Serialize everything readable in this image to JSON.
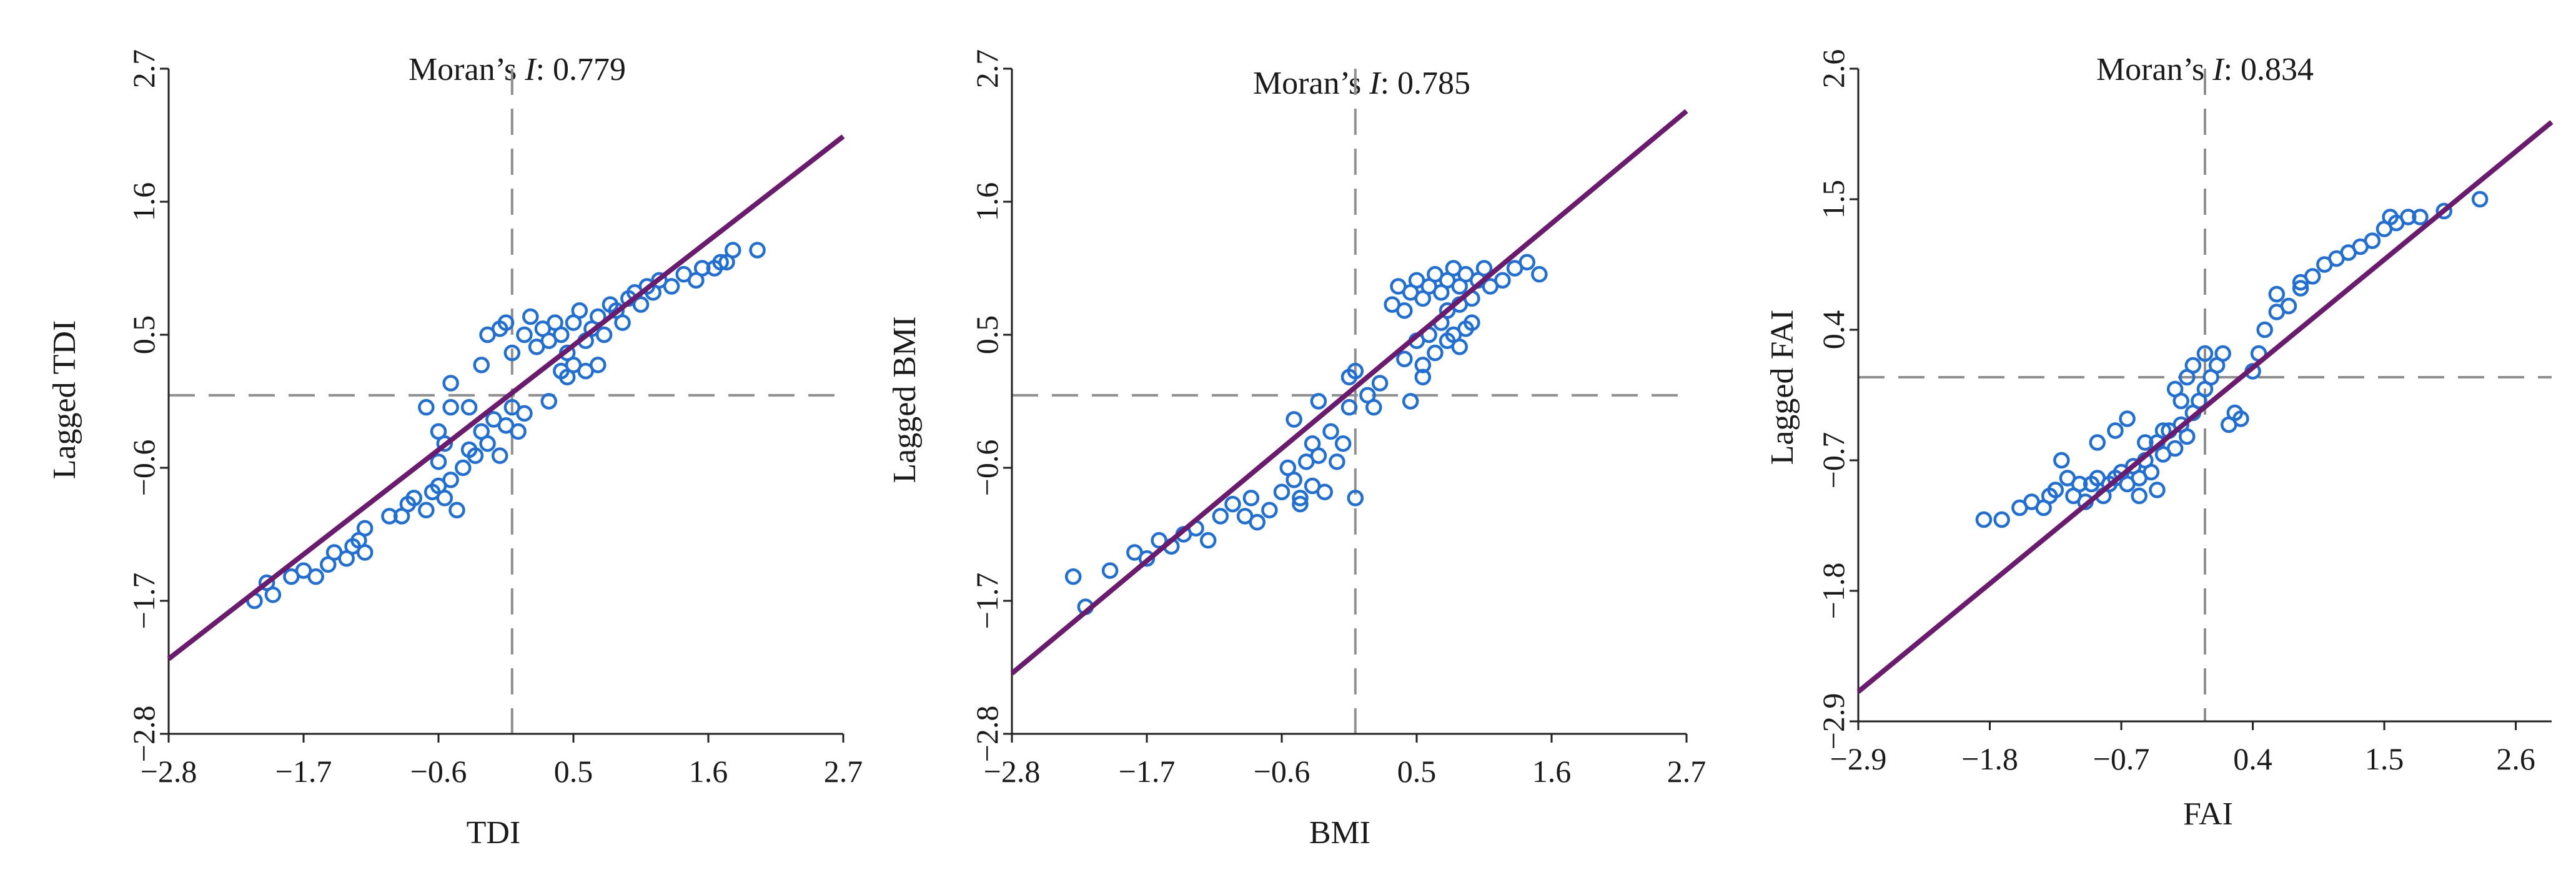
{
  "colors": {
    "point": "#1f6fd6",
    "fit_line": "#6a1b6e",
    "mean_line": "#8f8f8f",
    "axis": "#222222"
  },
  "chart_data": [
    {
      "type": "scatter",
      "title": "Moran's I: 0.779",
      "title_prefix": "Moran’s ",
      "title_italic": "I",
      "title_value": ": 0.779",
      "xlabel": "TDI",
      "ylabel": "Lagged TDI",
      "xlim": [
        -2.8,
        2.7
      ],
      "ylim": [
        -2.8,
        2.7
      ],
      "xticks": [
        -2.8,
        -1.7,
        -0.6,
        0.5,
        1.6,
        2.7
      ],
      "yticks": [
        -2.8,
        -1.7,
        -0.6,
        0.5,
        1.6,
        2.7
      ],
      "xtick_labels": [
        "−2.8",
        "−1.7",
        "−0.6",
        "0.5",
        "1.6",
        "2.7"
      ],
      "ytick_labels": [
        "−2.8",
        "−1.7",
        "−0.6",
        "0.5",
        "1.6",
        "2.7"
      ],
      "mean_x": 0.0,
      "mean_y": 0.0,
      "fit_line": [
        [
          -2.8,
          -2.18
        ],
        [
          2.7,
          2.14
        ]
      ],
      "points": [
        [
          -2.1,
          -1.7
        ],
        [
          -2.0,
          -1.55
        ],
        [
          -1.95,
          -1.65
        ],
        [
          -1.8,
          -1.5
        ],
        [
          -1.7,
          -1.45
        ],
        [
          -1.6,
          -1.5
        ],
        [
          -1.5,
          -1.4
        ],
        [
          -1.45,
          -1.3
        ],
        [
          -1.35,
          -1.35
        ],
        [
          -1.3,
          -1.25
        ],
        [
          -1.25,
          -1.2
        ],
        [
          -1.2,
          -1.1
        ],
        [
          -1.2,
          -1.3
        ],
        [
          -1.0,
          -1.0
        ],
        [
          -0.9,
          -1.0
        ],
        [
          -0.85,
          -0.9
        ],
        [
          -0.8,
          -0.85
        ],
        [
          -0.7,
          -0.95
        ],
        [
          -0.65,
          -0.8
        ],
        [
          -0.6,
          -0.75
        ],
        [
          -0.55,
          -0.85
        ],
        [
          -0.5,
          -0.7
        ],
        [
          -0.45,
          -0.95
        ],
        [
          -0.4,
          -0.6
        ],
        [
          -0.35,
          -0.45
        ],
        [
          -0.3,
          -0.5
        ],
        [
          -0.25,
          -0.3
        ],
        [
          -0.2,
          -0.4
        ],
        [
          -0.15,
          -0.2
        ],
        [
          -0.1,
          -0.5
        ],
        [
          -0.05,
          -0.25
        ],
        [
          0.0,
          -0.1
        ],
        [
          0.05,
          -0.3
        ],
        [
          0.1,
          -0.15
        ],
        [
          -0.7,
          -0.1
        ],
        [
          -0.5,
          -0.1
        ],
        [
          -0.6,
          -0.3
        ],
        [
          -0.55,
          -0.4
        ],
        [
          -0.35,
          -0.1
        ],
        [
          -0.5,
          0.1
        ],
        [
          -0.6,
          -0.55
        ],
        [
          0.3,
          -0.05
        ],
        [
          0.2,
          0.4
        ],
        [
          0.25,
          0.55
        ],
        [
          0.3,
          0.45
        ],
        [
          0.35,
          0.6
        ],
        [
          0.4,
          0.5
        ],
        [
          0.45,
          0.35
        ],
        [
          0.5,
          0.6
        ],
        [
          0.55,
          0.7
        ],
        [
          0.6,
          0.45
        ],
        [
          0.65,
          0.55
        ],
        [
          0.7,
          0.65
        ],
        [
          0.75,
          0.5
        ],
        [
          0.8,
          0.75
        ],
        [
          0.85,
          0.7
        ],
        [
          0.9,
          0.6
        ],
        [
          0.95,
          0.8
        ],
        [
          1.0,
          0.85
        ],
        [
          1.05,
          0.75
        ],
        [
          1.1,
          0.9
        ],
        [
          1.15,
          0.85
        ],
        [
          1.2,
          0.95
        ],
        [
          1.3,
          0.9
        ],
        [
          1.4,
          1.0
        ],
        [
          1.5,
          0.95
        ],
        [
          1.55,
          1.05
        ],
        [
          1.65,
          1.05
        ],
        [
          1.7,
          1.1
        ],
        [
          1.75,
          1.1
        ],
        [
          1.8,
          1.2
        ],
        [
          2.0,
          1.2
        ],
        [
          0.4,
          0.2
        ],
        [
          0.5,
          0.25
        ],
        [
          0.6,
          0.2
        ],
        [
          0.7,
          0.25
        ],
        [
          0.45,
          0.15
        ],
        [
          -0.25,
          0.25
        ],
        [
          -0.2,
          0.5
        ],
        [
          -0.1,
          0.55
        ],
        [
          0.15,
          0.65
        ],
        [
          0.0,
          0.35
        ],
        [
          -0.05,
          0.6
        ],
        [
          0.1,
          0.5
        ]
      ]
    },
    {
      "type": "scatter",
      "title": "Moran's I: 0.785",
      "title_prefix": "Moran’s ",
      "title_italic": "I",
      "title_value": ": 0.785",
      "xlabel": "BMI",
      "ylabel": "Lagged BMI",
      "xlim": [
        -2.8,
        2.7
      ],
      "ylim": [
        -2.8,
        2.7
      ],
      "xticks": [
        -2.8,
        -1.7,
        -0.6,
        0.5,
        1.6,
        2.7
      ],
      "yticks": [
        -2.8,
        -1.7,
        -0.6,
        0.5,
        1.6,
        2.7
      ],
      "xtick_labels": [
        "−2.8",
        "−1.7",
        "−0.6",
        "0.5",
        "1.6",
        "2.7"
      ],
      "ytick_labels": [
        "−2.8",
        "−1.7",
        "−0.6",
        "0.5",
        "1.6",
        "2.7"
      ],
      "mean_x": 0.0,
      "mean_y": 0.0,
      "fit_line": [
        [
          -2.8,
          -2.3
        ],
        [
          2.7,
          2.35
        ]
      ],
      "points": [
        [
          -2.3,
          -1.5
        ],
        [
          -2.2,
          -1.75
        ],
        [
          -2.0,
          -1.45
        ],
        [
          -1.8,
          -1.3
        ],
        [
          -1.7,
          -1.35
        ],
        [
          -1.6,
          -1.2
        ],
        [
          -1.5,
          -1.25
        ],
        [
          -1.4,
          -1.15
        ],
        [
          -1.3,
          -1.1
        ],
        [
          -1.2,
          -1.2
        ],
        [
          -1.1,
          -1.0
        ],
        [
          -1.0,
          -0.9
        ],
        [
          -0.9,
          -1.0
        ],
        [
          -0.85,
          -0.85
        ],
        [
          -0.8,
          -1.05
        ],
        [
          -0.7,
          -0.95
        ],
        [
          -0.6,
          -0.8
        ],
        [
          -0.55,
          -0.6
        ],
        [
          -0.5,
          -0.7
        ],
        [
          -0.45,
          -0.85
        ],
        [
          -0.4,
          -0.55
        ],
        [
          -0.35,
          -0.75
        ],
        [
          -0.3,
          -0.5
        ],
        [
          -0.25,
          -0.8
        ],
        [
          -0.45,
          -0.9
        ],
        [
          -0.35,
          -0.4
        ],
        [
          -0.5,
          -0.2
        ],
        [
          -0.3,
          -0.05
        ],
        [
          -0.2,
          -0.3
        ],
        [
          -0.15,
          -0.55
        ],
        [
          -0.1,
          -0.4
        ],
        [
          -0.05,
          -0.1
        ],
        [
          0.0,
          -0.85
        ],
        [
          -0.05,
          0.15
        ],
        [
          0.0,
          0.2
        ],
        [
          0.1,
          0.0
        ],
        [
          0.15,
          -0.1
        ],
        [
          0.2,
          0.1
        ],
        [
          0.3,
          0.75
        ],
        [
          0.35,
          0.9
        ],
        [
          0.4,
          0.7
        ],
        [
          0.45,
          0.85
        ],
        [
          0.5,
          0.95
        ],
        [
          0.55,
          0.8
        ],
        [
          0.6,
          0.9
        ],
        [
          0.65,
          1.0
        ],
        [
          0.7,
          0.85
        ],
        [
          0.75,
          0.95
        ],
        [
          0.8,
          1.05
        ],
        [
          0.85,
          0.9
        ],
        [
          0.9,
          1.0
        ],
        [
          0.95,
          0.8
        ],
        [
          1.0,
          0.95
        ],
        [
          1.05,
          1.05
        ],
        [
          1.1,
          0.9
        ],
        [
          1.2,
          0.95
        ],
        [
          1.3,
          1.05
        ],
        [
          1.4,
          1.1
        ],
        [
          1.5,
          1.0
        ],
        [
          0.4,
          0.3
        ],
        [
          0.5,
          0.45
        ],
        [
          0.55,
          0.25
        ],
        [
          0.6,
          0.5
        ],
        [
          0.65,
          0.35
        ],
        [
          0.7,
          0.6
        ],
        [
          0.75,
          0.45
        ],
        [
          0.8,
          0.5
        ],
        [
          0.85,
          0.4
        ],
        [
          0.9,
          0.55
        ],
        [
          0.95,
          0.6
        ],
        [
          0.45,
          -0.05
        ],
        [
          0.55,
          0.15
        ],
        [
          0.75,
          0.7
        ],
        [
          0.85,
          0.75
        ]
      ]
    },
    {
      "type": "scatter",
      "title": "Moran's I: 0.834",
      "title_prefix": "Moran’s ",
      "title_italic": "I",
      "title_value": ": 0.834",
      "xlabel": "FAI",
      "ylabel": "Lagged FAI",
      "xlim": [
        -2.9,
        2.9
      ],
      "ylim": [
        -2.9,
        2.6
      ],
      "xticks": [
        -2.9,
        -1.8,
        -0.7,
        0.4,
        1.5,
        2.6
      ],
      "yticks": [
        -2.9,
        -1.8,
        -0.7,
        0.4,
        1.5,
        2.6
      ],
      "xtick_labels": [
        "−2.9",
        "−1.8",
        "−0.7",
        "0.4",
        "1.5",
        "2.6"
      ],
      "ytick_labels": [
        "−2.9",
        "−1.8",
        "−0.7",
        "0.4",
        "1.5",
        "2.6"
      ],
      "mean_x": 0.0,
      "mean_y": 0.0,
      "fit_line": [
        [
          -2.9,
          -2.65
        ],
        [
          2.9,
          2.15
        ]
      ],
      "points": [
        [
          -1.85,
          -1.2
        ],
        [
          -1.7,
          -1.2
        ],
        [
          -1.55,
          -1.1
        ],
        [
          -1.45,
          -1.05
        ],
        [
          -1.35,
          -1.1
        ],
        [
          -1.3,
          -1.0
        ],
        [
          -1.25,
          -0.95
        ],
        [
          -1.2,
          -0.7
        ],
        [
          -1.15,
          -0.85
        ],
        [
          -1.1,
          -1.0
        ],
        [
          -1.05,
          -0.9
        ],
        [
          -1.0,
          -1.05
        ],
        [
          -0.95,
          -0.9
        ],
        [
          -0.9,
          -0.85
        ],
        [
          -0.85,
          -1.0
        ],
        [
          -0.8,
          -0.9
        ],
        [
          -0.75,
          -0.85
        ],
        [
          -0.7,
          -0.8
        ],
        [
          -0.65,
          -0.9
        ],
        [
          -0.6,
          -0.75
        ],
        [
          -0.55,
          -0.85
        ],
        [
          -0.5,
          -0.7
        ],
        [
          -0.45,
          -0.8
        ],
        [
          -0.4,
          -0.55
        ],
        [
          -0.35,
          -0.65
        ],
        [
          -0.3,
          -0.45
        ],
        [
          -0.25,
          -0.6
        ],
        [
          -0.2,
          -0.4
        ],
        [
          -0.15,
          -0.5
        ],
        [
          -0.1,
          -0.3
        ],
        [
          -0.05,
          -0.2
        ],
        [
          0.0,
          -0.1
        ],
        [
          0.05,
          0.0
        ],
        [
          0.1,
          0.1
        ],
        [
          -0.2,
          -0.2
        ],
        [
          -0.25,
          -0.1
        ],
        [
          -0.15,
          0.0
        ],
        [
          -0.1,
          0.1
        ],
        [
          0.0,
          0.2
        ],
        [
          0.15,
          0.2
        ],
        [
          0.2,
          -0.4
        ],
        [
          0.25,
          -0.3
        ],
        [
          0.3,
          -0.35
        ],
        [
          0.4,
          0.05
        ],
        [
          0.45,
          0.2
        ],
        [
          0.5,
          0.4
        ],
        [
          0.6,
          0.55
        ],
        [
          0.7,
          0.6
        ],
        [
          0.8,
          0.75
        ],
        [
          0.9,
          0.85
        ],
        [
          1.0,
          0.95
        ],
        [
          1.1,
          1.0
        ],
        [
          1.2,
          1.05
        ],
        [
          1.3,
          1.1
        ],
        [
          1.4,
          1.15
        ],
        [
          1.5,
          1.25
        ],
        [
          1.6,
          1.3
        ],
        [
          1.7,
          1.35
        ],
        [
          1.8,
          1.35
        ],
        [
          2.0,
          1.4
        ],
        [
          2.3,
          1.5
        ],
        [
          -0.9,
          -0.55
        ],
        [
          -0.75,
          -0.45
        ],
        [
          -0.65,
          -0.35
        ],
        [
          -0.5,
          -0.55
        ],
        [
          -0.35,
          -0.45
        ],
        [
          -0.55,
          -1.0
        ],
        [
          -0.4,
          -0.95
        ],
        [
          0.6,
          0.7
        ],
        [
          0.8,
          0.8
        ],
        [
          1.55,
          1.35
        ]
      ]
    }
  ]
}
